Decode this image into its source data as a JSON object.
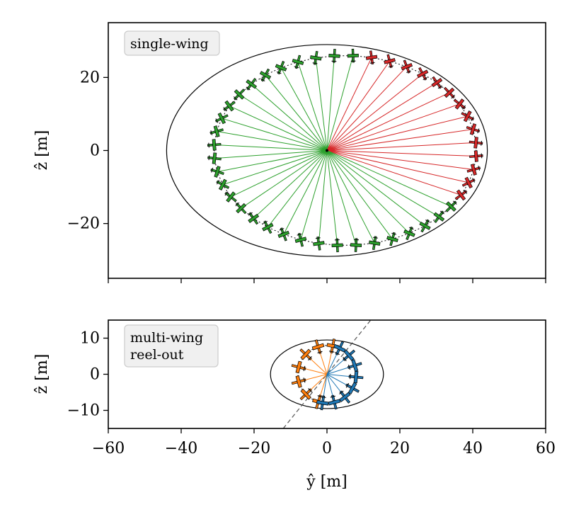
{
  "chart_data": [
    {
      "type": "scatter",
      "panel": "top",
      "annotation": "single-wing",
      "xlabel": "ŷ [m]",
      "ylabel": "ẑ [m]",
      "xlim": [
        -60,
        60
      ],
      "ylim": [
        -35,
        35
      ],
      "yticks": [
        -20,
        0,
        20
      ],
      "ytick_labels": [
        "−20",
        "0",
        "20"
      ],
      "ellipse": {
        "center": [
          0,
          0
        ],
        "semi_y": 44,
        "semi_z": 29
      },
      "path_center": [
        0,
        0
      ],
      "path_radius_y": 32,
      "path_radius_z": 26,
      "series": [
        {
          "color": "#2ca02c",
          "phase_from_deg": 0,
          "phase_to_deg": 350,
          "count": 30
        },
        {
          "color": "#d62728",
          "phase_from_deg": 350,
          "phase_to_deg": 360,
          "count": 14
        }
      ]
    },
    {
      "type": "scatter",
      "panel": "bottom",
      "annotation": "multi-wing\nreel-out",
      "annotation_lines": [
        "multi-wing",
        "reel-out"
      ],
      "xlabel": "ŷ [m]",
      "ylabel": "ẑ [m]",
      "xlim": [
        -60,
        60
      ],
      "ylim": [
        -15,
        15
      ],
      "xticks": [
        -60,
        -40,
        -20,
        0,
        20,
        40,
        60
      ],
      "xtick_labels": [
        "−60",
        "−40",
        "−20",
        "0",
        "20",
        "40",
        "60"
      ],
      "yticks": [
        -10,
        0,
        10
      ],
      "ytick_labels": [
        "−10",
        "0",
        "10"
      ],
      "ellipse": {
        "center": [
          0,
          0
        ],
        "semi_y": 15.5,
        "semi_z": 9.5
      },
      "dashed_line": {
        "p1": [
          -12,
          -15
        ],
        "p2": [
          12,
          15
        ]
      },
      "path_radius": 8,
      "series": [
        {
          "color": "#ff7f0e",
          "side": "left",
          "count": 7
        },
        {
          "color": "#1f77b4",
          "side": "right",
          "count": 8
        }
      ]
    }
  ]
}
